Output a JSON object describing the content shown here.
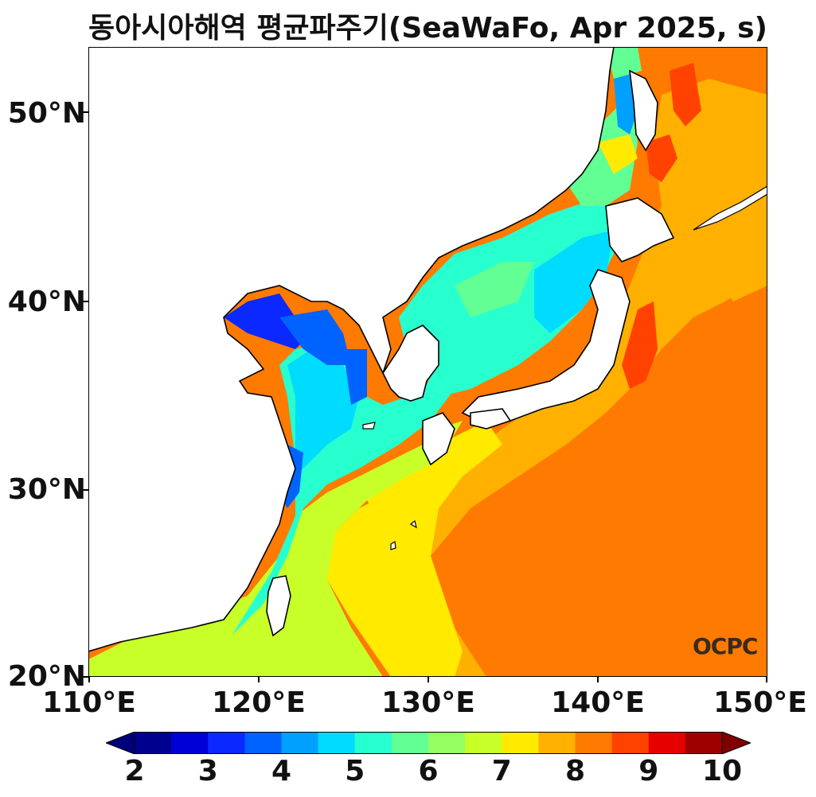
{
  "title": "동아시아해역 평균파주기(SeaWaFo, Apr 2025, s)",
  "axes": {
    "y_ticks": [
      "50°N",
      "40°N",
      "30°N",
      "20°N"
    ],
    "x_ticks": [
      "110°E",
      "120°E",
      "130°E",
      "140°E",
      "150°E"
    ]
  },
  "colorbar": {
    "labels": [
      "2",
      "3",
      "4",
      "5",
      "6",
      "7",
      "8",
      "9",
      "10"
    ],
    "colors": [
      "#00008f",
      "#0000d6",
      "#0a28ff",
      "#0062ff",
      "#00a0ff",
      "#00dcff",
      "#28ffcf",
      "#62ff94",
      "#96ff62",
      "#c8ff28",
      "#ffea00",
      "#ffb000",
      "#ff7a00",
      "#ff4200",
      "#e60000",
      "#9e0000"
    ],
    "min_color": "#00007a",
    "max_color": "#800000"
  },
  "logo": "OCPC"
}
